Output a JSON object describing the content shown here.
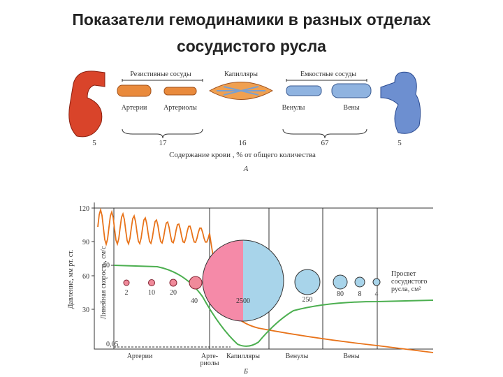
{
  "title": [
    "Показатели гемодинамики в разных отделах",
    "сосудистого русла"
  ],
  "part_a": {
    "groups": [
      "Резистивные сосуды",
      "Капилляры",
      "Емкостные сосуды"
    ],
    "vessels": [
      "Артерии",
      "Артериолы",
      "Венулы",
      "Вены"
    ],
    "blood_content": [
      "5",
      "17",
      "16",
      "67",
      "5"
    ],
    "caption": "Содержание крови , % от общего количества",
    "label": "А"
  },
  "part_b": {
    "pressure_axis": {
      "label": "Давление, мм рт. ст.",
      "ticks": [
        "120",
        "90",
        "60",
        "30"
      ]
    },
    "velocity_axis": {
      "label": "Линейная скорость, см/с",
      "ticks": [
        "40",
        "0,05"
      ]
    },
    "area_values": [
      "2",
      "10",
      "20",
      "40",
      "2500",
      "250",
      "80",
      "8",
      "4"
    ],
    "area_label": [
      "Просвет",
      "сосудистого",
      "русла, см²"
    ],
    "segments": [
      [
        "Артерии"
      ],
      [
        "Арте-",
        "риолы"
      ],
      [
        "Капилляры"
      ],
      [
        "Венулы"
      ],
      [
        "Вены"
      ]
    ],
    "label": "Б"
  }
}
